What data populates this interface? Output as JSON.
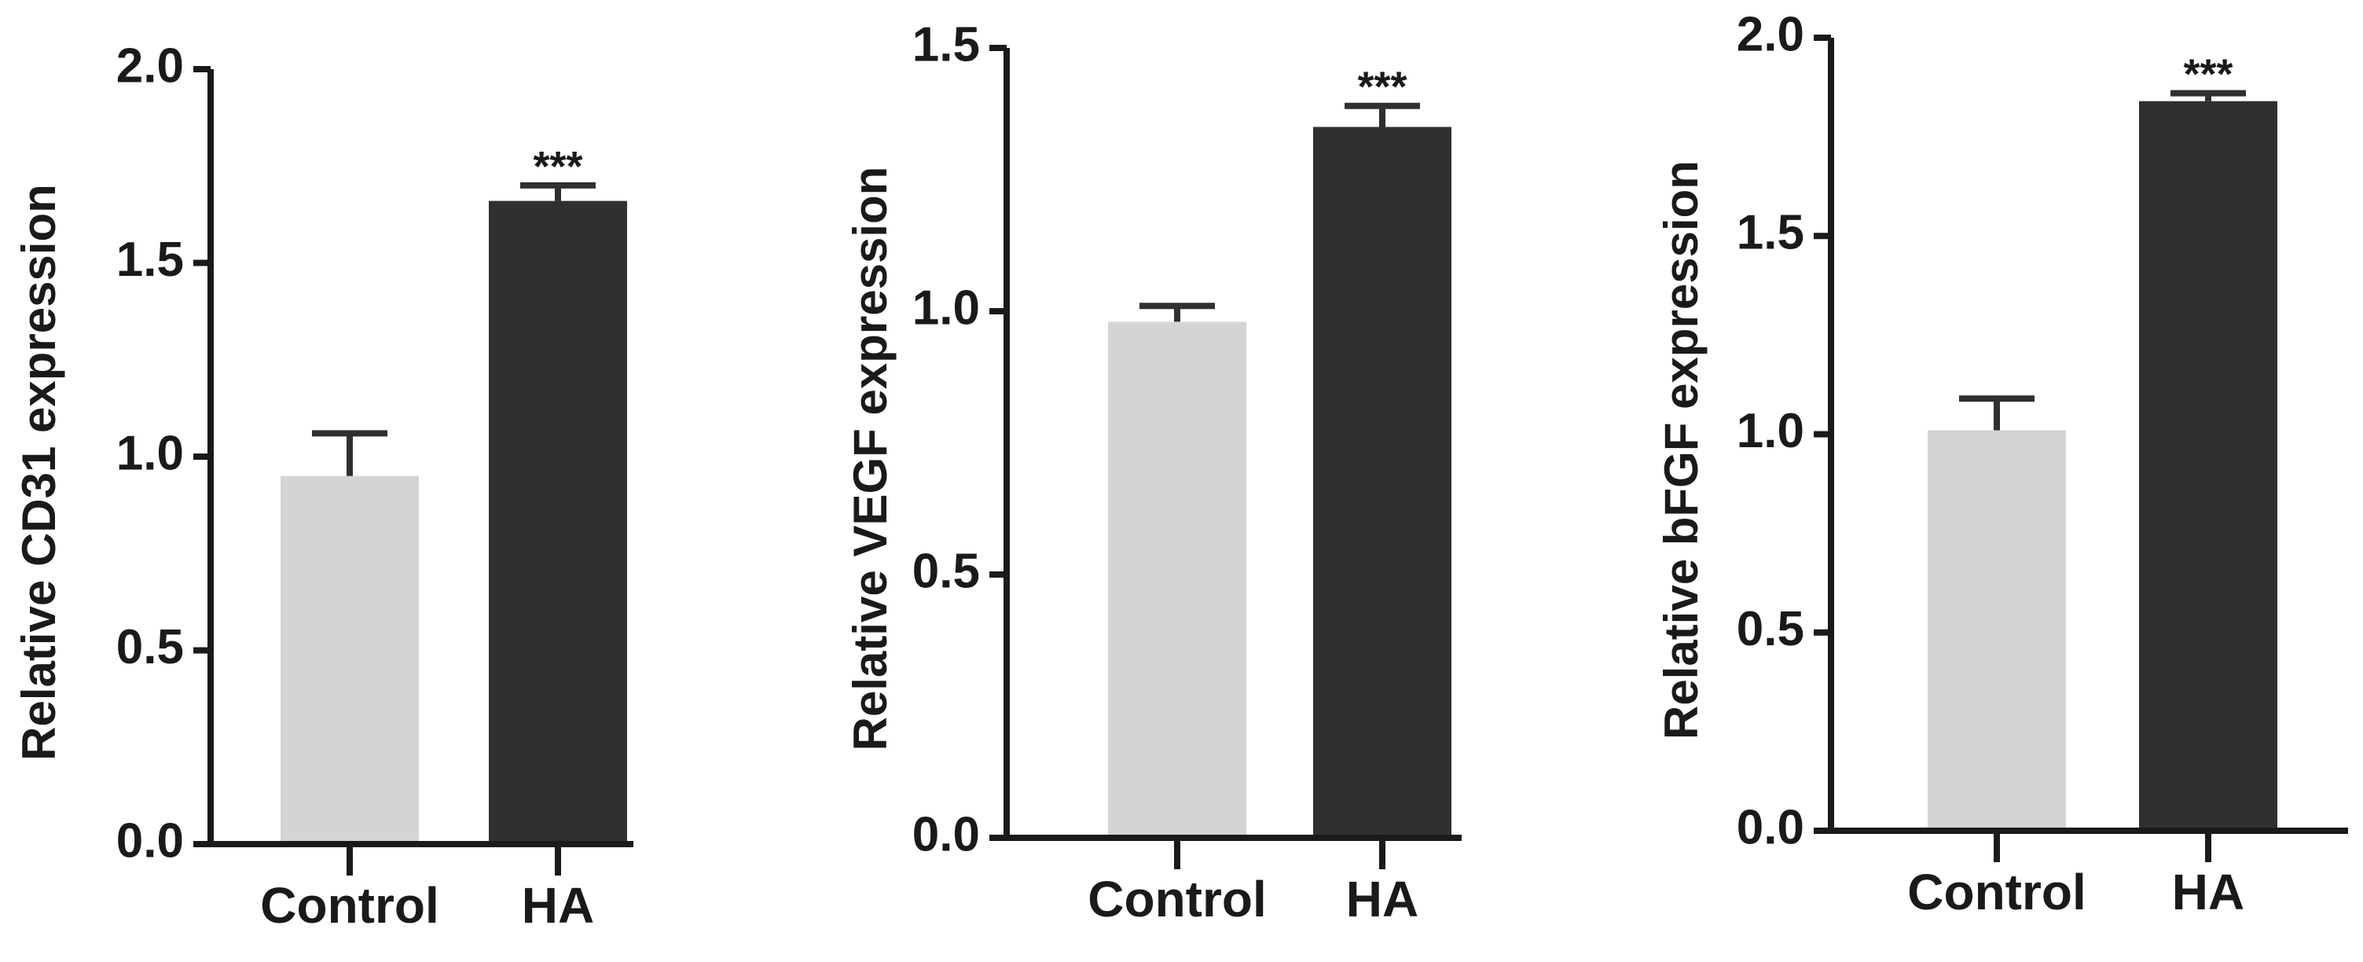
{
  "chart_data": [
    {
      "type": "bar",
      "ylabel": "Relative CD31 expression",
      "categories": [
        "Control",
        "HA"
      ],
      "values": [
        0.95,
        1.66
      ],
      "errors": [
        0.11,
        0.04
      ],
      "colors": [
        "#d4d4d4",
        "#2f3130"
      ],
      "annotations": [
        null,
        "***"
      ],
      "ylim": [
        0,
        2
      ],
      "yticks": [
        {
          "value": 0,
          "label": "0.0"
        },
        0.5,
        {
          "value": 1,
          "label": "1.0"
        },
        1.5,
        {
          "value": 2,
          "label": "2.0"
        }
      ]
    },
    {
      "type": "bar",
      "ylabel": "Relative VEGF expression",
      "categories": [
        "Control",
        "HA"
      ],
      "values": [
        0.98,
        1.35
      ],
      "errors": [
        0.03,
        0.04
      ],
      "colors": [
        "#d4d4d4",
        "#2f3130"
      ],
      "annotations": [
        null,
        "***"
      ],
      "ylim": [
        0,
        1.5
      ],
      "yticks": [
        {
          "value": 0,
          "label": "0.0"
        },
        0.5,
        {
          "value": 1,
          "label": "1.0"
        },
        1.5
      ]
    },
    {
      "type": "bar",
      "ylabel": "Relative bFGF expression",
      "categories": [
        "Control",
        "HA"
      ],
      "values": [
        1.01,
        1.84
      ],
      "errors": [
        0.08,
        0.02
      ],
      "colors": [
        "#d4d4d4",
        "#2f3130"
      ],
      "annotations": [
        null,
        "***"
      ],
      "ylim": [
        0,
        2
      ],
      "yticks": [
        {
          "value": 0,
          "label": "0.0"
        },
        0.5,
        {
          "value": 1,
          "label": "1.0"
        },
        1.5,
        {
          "value": 2,
          "label": "2.0"
        }
      ]
    }
  ]
}
